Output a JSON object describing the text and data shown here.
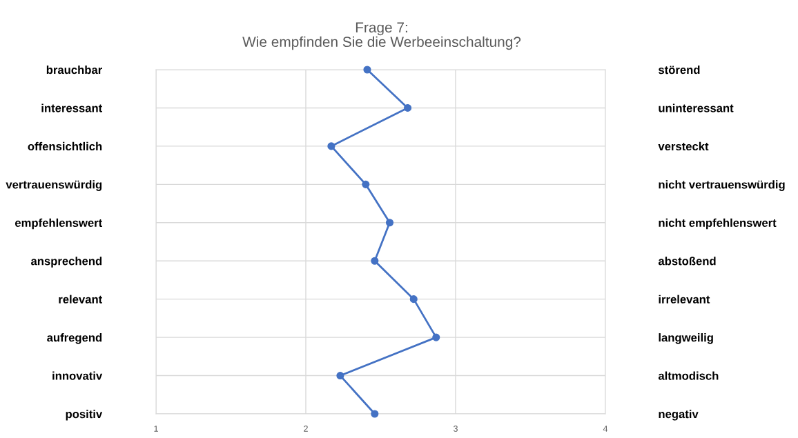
{
  "chart_data": {
    "type": "line",
    "orientation": "horizontal",
    "title": "Frage 7:\nWie empfinden Sie die Werbeeinschaltung?",
    "categories": [
      "brauchbar",
      "interessant",
      "offensichtlich",
      "vertrauenswürdig",
      "empfehlenswert",
      "ansprechend",
      "relevant",
      "aufregend",
      "innovativ",
      "positiv"
    ],
    "y2_categories": [
      "störend",
      "uninteressant",
      "versteckt",
      "nicht vertrauenswürdig",
      "nicht empfehlenswert",
      "abstoßend",
      "irrelevant",
      "langweilig",
      "altmodisch",
      "negativ"
    ],
    "series": [
      {
        "color": "#4472c4",
        "values": [
          2.41,
          2.68,
          2.17,
          2.4,
          2.56,
          2.46,
          2.72,
          2.87,
          2.23,
          2.46
        ]
      }
    ],
    "xlim": [
      1,
      4
    ],
    "xticks": [
      1,
      2,
      3,
      4
    ],
    "grid": true,
    "marker": "circle",
    "line_style": "solid"
  }
}
